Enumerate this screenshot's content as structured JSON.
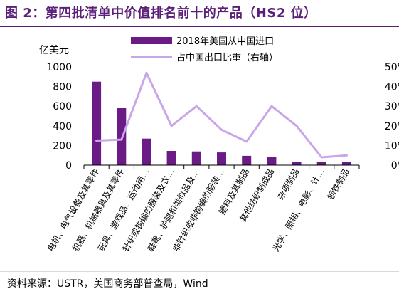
{
  "title": "图 2：第四批清单中价值排名前十的产品（HS2 位）",
  "source": "资料来源：USTR，美国商务部普查局，Wind",
  "colors": {
    "title": "#5b1f78",
    "bar": "#6a1b86",
    "line": "#c9a6e8",
    "axis": "#000000"
  },
  "chart_data": {
    "type": "bar",
    "categories": [
      "电机、电气设备及其零件",
      "机器、机械器具及其零件",
      "玩具、游戏品、运动用…",
      "针织或钩编的服装及衣…",
      "鞋靴、护腿和类似品及…",
      "非针织或非钩编的服装…",
      "塑料及其制品",
      "其他纺织制成品",
      "杂项制品",
      "光学、照相、电影、计…",
      "钢铁制品"
    ],
    "series": [
      {
        "name": "2018年美国从中国进口",
        "type": "bar",
        "axis": "left",
        "values": [
          850,
          580,
          270,
          145,
          140,
          130,
          95,
          85,
          35,
          30,
          30
        ]
      },
      {
        "name": "占中国出口比重（右轴）",
        "type": "line",
        "axis": "right",
        "values": [
          12.5,
          13,
          47,
          20,
          30,
          18,
          12,
          30,
          20,
          4,
          5
        ]
      }
    ],
    "ylabel": "亿美元",
    "ylim": [
      0,
      1000
    ],
    "yticks": [
      0,
      200,
      400,
      600,
      800,
      1000
    ],
    "y2lim": [
      0,
      50
    ],
    "y2ticks": [
      0,
      10,
      20,
      30,
      40,
      50
    ],
    "y2tick_labels": [
      "0%",
      "10%",
      "20%",
      "30%",
      "40%",
      "50%"
    ],
    "legend": "top",
    "grid": false
  }
}
